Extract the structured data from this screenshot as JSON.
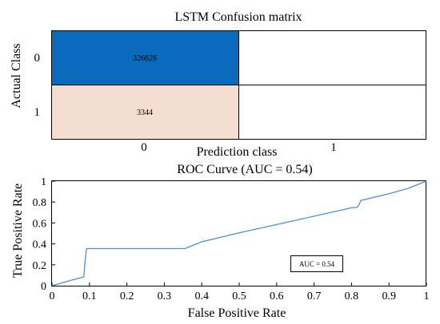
{
  "chart_data": [
    {
      "type": "heatmap",
      "title": "LSTM Confusion matrix",
      "xlabel": "Prediction class",
      "ylabel": "Actual Class",
      "x_categories": [
        "0",
        "1"
      ],
      "y_categories": [
        "0",
        "1"
      ],
      "cells": [
        {
          "row": "0",
          "col": "0",
          "value": 326626,
          "label": "326626",
          "color": "#0a6bbd",
          "text_color": "#ffffff"
        },
        {
          "row": "0",
          "col": "1",
          "value": null,
          "label": "",
          "color": "#ffffff",
          "text_color": "#000000"
        },
        {
          "row": "1",
          "col": "0",
          "value": 3344,
          "label": "3344",
          "color": "#f6ddd1",
          "text_color": "#000000"
        },
        {
          "row": "1",
          "col": "1",
          "value": null,
          "label": "",
          "color": "#ffffff",
          "text_color": "#000000"
        }
      ]
    },
    {
      "type": "line",
      "title": "ROC Curve (AUC = 0.54)",
      "xlabel": "False Positive Rate",
      "ylabel": "True Positive Rate",
      "xlim": [
        0,
        1
      ],
      "ylim": [
        0,
        1
      ],
      "xticks": [
        "0",
        "0.1",
        "0.2",
        "0.3",
        "0.4",
        "0.5",
        "0.6",
        "0.7",
        "0.8",
        "0.9",
        "1"
      ],
      "yticks": [
        "0",
        "0.2",
        "0.4",
        "0.6",
        "0.8",
        "1"
      ],
      "grid": false,
      "annotation": "AUC = 0.54",
      "series": [
        {
          "color": "#4a90d9",
          "x": [
            0,
            0.02,
            0.05,
            0.085,
            0.088,
            0.092,
            0.2,
            0.3,
            0.355,
            0.4,
            0.5,
            0.6,
            0.7,
            0.75,
            0.8,
            0.815,
            0.82,
            0.825,
            0.9,
            0.95,
            1.0
          ],
          "y": [
            0,
            0.02,
            0.05,
            0.085,
            0.22,
            0.355,
            0.355,
            0.355,
            0.355,
            0.42,
            0.505,
            0.585,
            0.665,
            0.705,
            0.745,
            0.75,
            0.775,
            0.815,
            0.88,
            0.93,
            1.0
          ]
        }
      ]
    }
  ]
}
